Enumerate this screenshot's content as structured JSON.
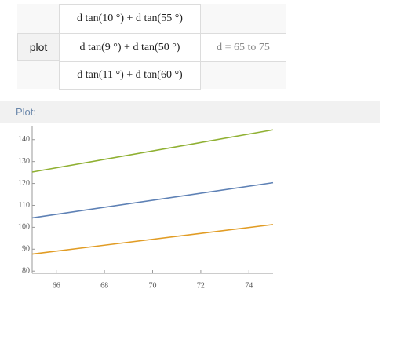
{
  "input": {
    "function": "plot",
    "expressions": [
      "d tan(10 °) + d tan(55 °)",
      "d tan(9 °) + d tan(50 °)",
      "d tan(11 °) + d tan(60 °)"
    ],
    "range": "d = 65 to 75"
  },
  "pod_title": "Plot:",
  "chart_data": {
    "type": "line",
    "x": [
      65,
      75
    ],
    "series": [
      {
        "color": "#5e81b5",
        "values": [
          104.29,
          120.34
        ]
      },
      {
        "color": "#e19c24",
        "values": [
          87.76,
          101.26
        ]
      },
      {
        "color": "#8fb032",
        "values": [
          125.22,
          144.48
        ]
      }
    ],
    "xlim": [
      65,
      75
    ],
    "xticks": [
      66,
      68,
      70,
      72,
      74
    ],
    "ylim": [
      79,
      146
    ],
    "yticks": [
      80,
      90,
      100,
      110,
      120,
      130,
      140
    ]
  }
}
